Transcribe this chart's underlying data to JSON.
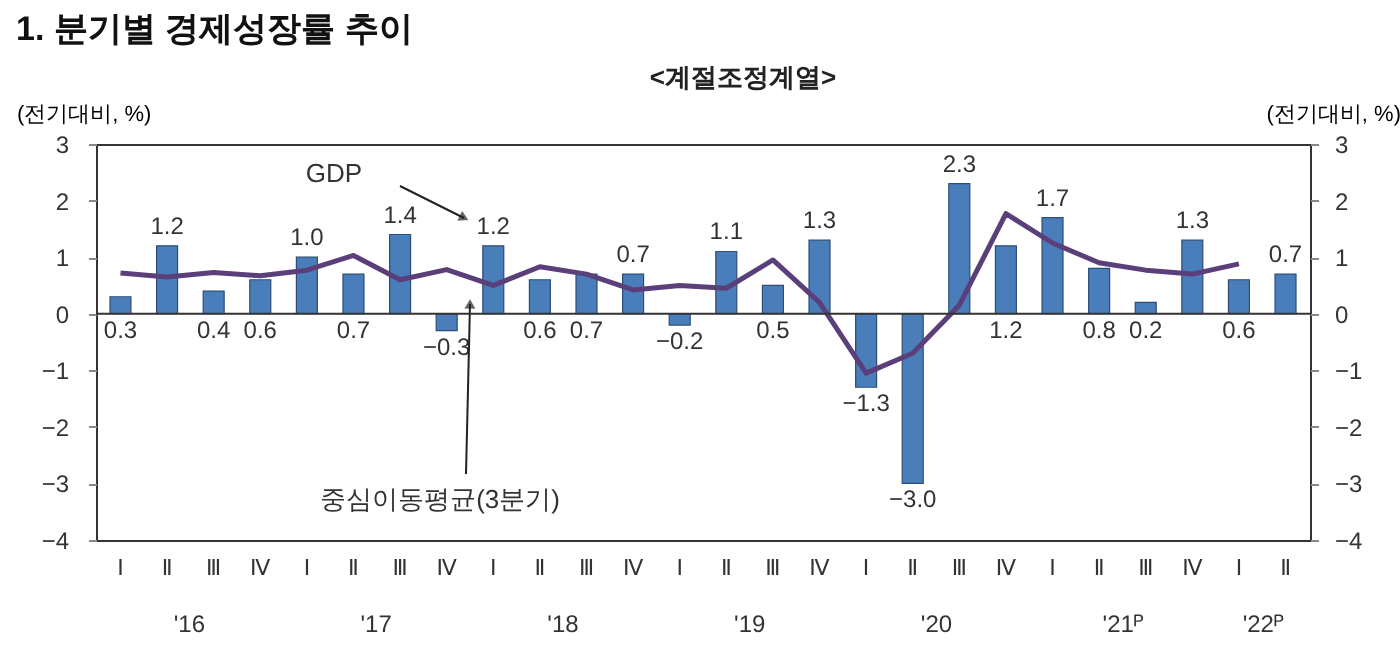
{
  "chart_data": {
    "type": "bar",
    "title": "1. 분기별 경제성장률 추이",
    "subtitle": "<계절조정계열>",
    "ylabel": "(전기대비, %)",
    "y2label": "(전기대비, %)",
    "categories": [
      "Ⅰ",
      "Ⅱ",
      "Ⅲ",
      "Ⅳ",
      "Ⅰ",
      "Ⅱ",
      "Ⅲ",
      "Ⅳ",
      "Ⅰ",
      "Ⅱ",
      "Ⅲ",
      "Ⅳ",
      "Ⅰ",
      "Ⅱ",
      "Ⅲ",
      "Ⅳ",
      "Ⅰ",
      "Ⅱ",
      "Ⅲ",
      "Ⅳ",
      "Ⅰ",
      "Ⅱ",
      "Ⅲ",
      "Ⅳ",
      "Ⅰ",
      "Ⅱ"
    ],
    "series": [
      {
        "name": "GDP",
        "color": "#4a7ebb",
        "values": [
          0.3,
          1.2,
          0.4,
          0.6,
          1.0,
          0.7,
          1.4,
          -0.3,
          1.2,
          0.6,
          0.7,
          0.7,
          -0.2,
          1.1,
          0.5,
          1.3,
          -1.3,
          -3.0,
          2.3,
          1.2,
          1.7,
          0.8,
          0.2,
          1.3,
          0.6,
          0.7
        ],
        "value_labels": [
          "0.3",
          "1.2",
          "0.4",
          "0.6",
          "1.0",
          "0.7",
          "1.4",
          "−0.3",
          "1.2",
          "0.6",
          "0.7",
          "0.7",
          "−0.2",
          "1.1",
          "0.5",
          "1.3",
          "−1.3",
          "−3.0",
          "2.3",
          "1.2",
          "1.7",
          "0.8",
          "0.2",
          "1.3",
          "0.6",
          "0.7"
        ]
      },
      {
        "name": "중심이동평균(3분기)",
        "type": "line",
        "color": "#5b3f7a",
        "values": [
          0.72,
          0.65,
          0.73,
          0.67,
          0.77,
          1.03,
          0.6,
          0.78,
          0.5,
          0.83,
          0.7,
          0.42,
          0.5,
          0.45,
          0.95,
          0.2,
          -1.05,
          -0.7,
          0.15,
          1.77,
          1.25,
          0.9,
          0.77,
          0.7,
          0.88,
          null
        ]
      }
    ],
    "annotations": [
      "'16",
      "'17",
      "'18",
      "'19",
      "'20",
      "'21ᴾ",
      "'22ᴾ"
    ],
    "ylim": [
      -4,
      3
    ],
    "yticks": [
      -4,
      -3,
      -2,
      -1,
      0,
      1,
      2,
      3
    ],
    "y2lim": [
      -4,
      3
    ],
    "y2ticks": [
      -4,
      -3,
      -2,
      -1,
      0,
      1,
      2,
      3
    ]
  }
}
